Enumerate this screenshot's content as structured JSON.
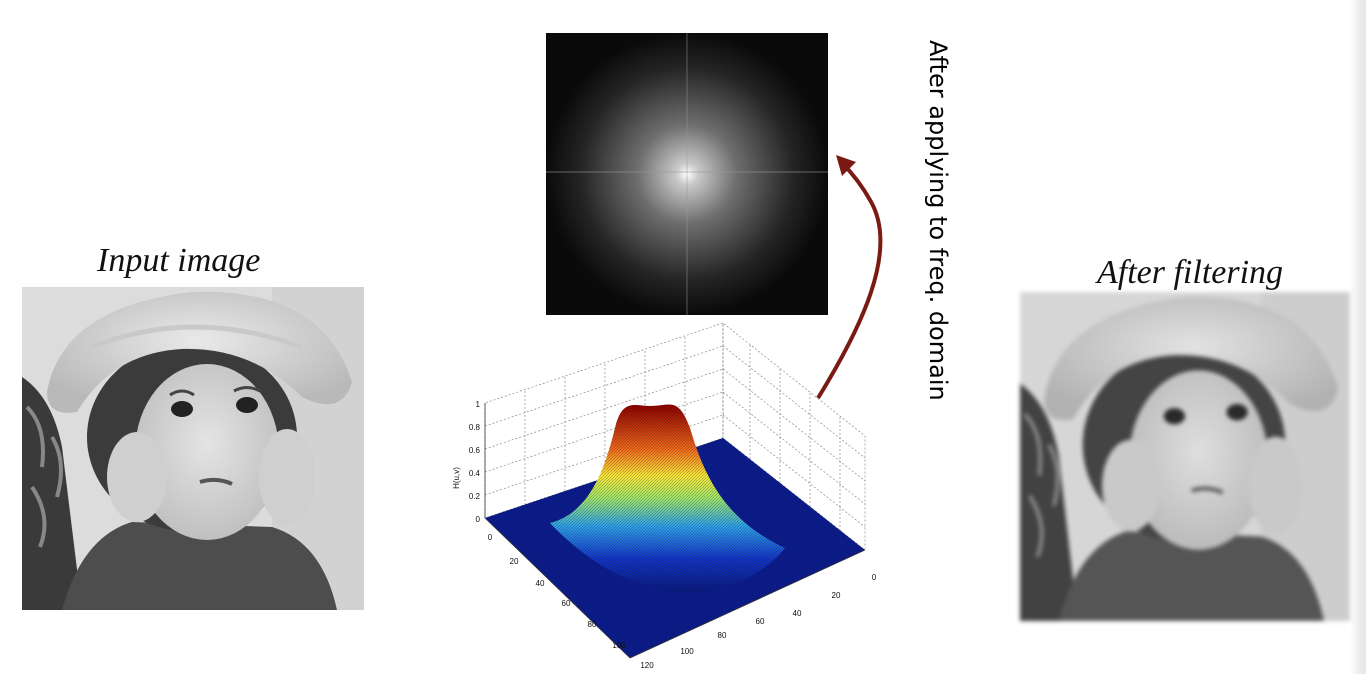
{
  "captions": {
    "input": "Input image",
    "output": "After filtering"
  },
  "arrow_label": "After applying  to freq. domain",
  "plot": {
    "zlabel": "H(u,v)",
    "z_ticks": [
      "0",
      "0.2",
      "0.4",
      "0.6",
      "0.8",
      "1"
    ],
    "left_ticks": [
      "0",
      "20",
      "40",
      "60",
      "80",
      "100",
      "120"
    ],
    "right_ticks": [
      "0",
      "20",
      "40",
      "60",
      "80",
      "100"
    ]
  },
  "colors": {
    "arrow": "#7a1a12",
    "surface_peak": "#8b0000",
    "surface_base": "#0a1a80"
  },
  "icons": {
    "input_photo": "child-with-hat-photo",
    "output_photo": "child-with-hat-photo-blurred",
    "spectrum": "fourier-spectrum-image"
  }
}
